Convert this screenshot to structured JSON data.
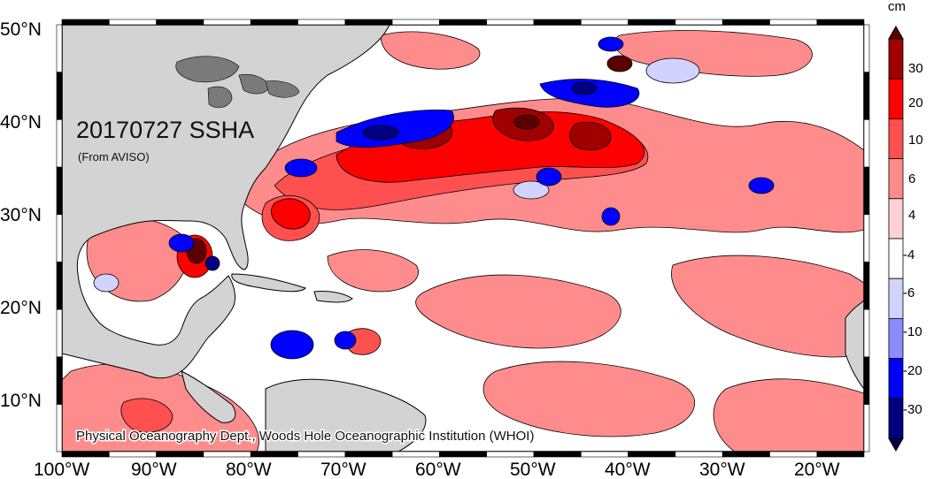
{
  "map": {
    "title": "20170727 SSHA",
    "source": "(From AVISO)",
    "credit": "Physical Oceanography Dept., Woods Hole Oceanographic Institution (WHOI)",
    "lat_labels": [
      "50°N",
      "40°N",
      "30°N",
      "20°N",
      "10°N"
    ],
    "lon_labels": [
      "100°W",
      "90°W",
      "80°W",
      "70°W",
      "60°W",
      "50°W",
      "40°W",
      "30°W",
      "20°W"
    ],
    "land_color": "#d3d3d3",
    "ocean_base_color": "#ffffff"
  },
  "colorbar": {
    "unit": "cm",
    "tick_labels": [
      "30",
      "20",
      "10",
      "6",
      "4",
      "-4",
      "-6",
      "-10",
      "-20",
      "-30"
    ],
    "colors": [
      "#5a0000",
      "#a00000",
      "#ff0000",
      "#ff5050",
      "#ff8c8c",
      "#ffd2d2",
      "#ffffff",
      "#d2d2ff",
      "#8c8cff",
      "#0000ff",
      "#000080",
      "#000040"
    ]
  },
  "features": {
    "land": [
      "north-america",
      "south-america",
      "florida",
      "cuba",
      "hispaniola",
      "yucatan",
      "africa",
      "great-lakes"
    ],
    "anomalies": [
      "gulf-stream-warm-core",
      "gulf-of-mexico-loop-eddy",
      "caribbean-cold-eddies"
    ]
  }
}
